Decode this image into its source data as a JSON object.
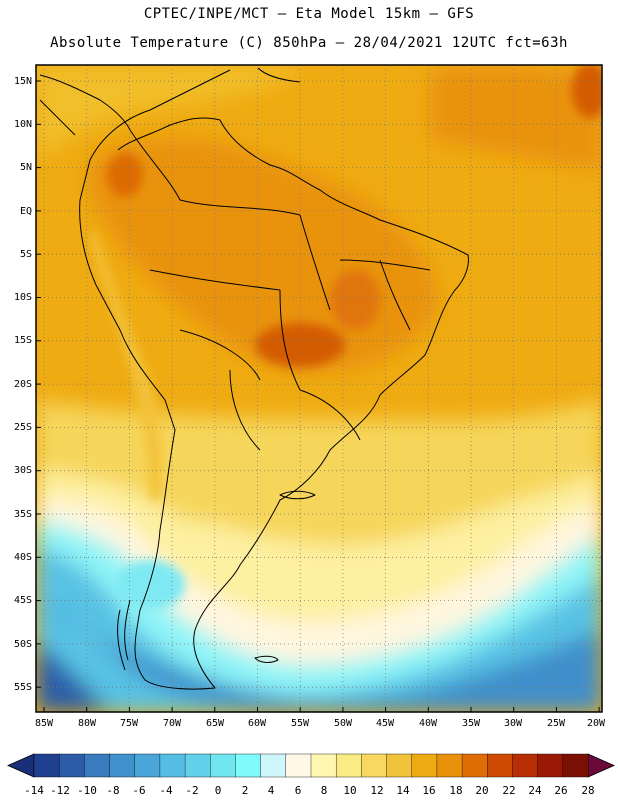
{
  "header": {
    "line1": "CPTEC/INPE/MCT –  Eta Model 15km – GFS",
    "line2": "Absolute Temperature (C) 850hPa – 28/04/2021 12UTC fct=63h"
  },
  "map": {
    "lat_labels": [
      "15N",
      "10N",
      "5N",
      "EQ",
      "5S",
      "10S",
      "15S",
      "20S",
      "25S",
      "30S",
      "35S",
      "40S",
      "45S",
      "50S",
      "55S"
    ],
    "lon_labels": [
      "85W",
      "80W",
      "75W",
      "70W",
      "65W",
      "60W",
      "55W",
      "50W",
      "45W",
      "40W",
      "35W",
      "30W",
      "25W",
      "20W"
    ]
  },
  "colorbar": {
    "labels": [
      "-14",
      "-12",
      "-10",
      "-8",
      "-6",
      "-4",
      "-2",
      "0",
      "2",
      "4",
      "6",
      "8",
      "10",
      "12",
      "14",
      "16",
      "18",
      "20",
      "22",
      "24",
      "26",
      "28"
    ],
    "colors": [
      "#1f3f8f",
      "#2c5ca8",
      "#3a7bbf",
      "#3f92cc",
      "#4aa6d8",
      "#55bde3",
      "#62d2ea",
      "#6fe6f0",
      "#80fbfb",
      "#cff7fb",
      "#fff8e6",
      "#fff7b0",
      "#fbeb84",
      "#f8d860",
      "#f1c23c",
      "#eeaa12",
      "#e9900a",
      "#e06e06",
      "#cf4a04",
      "#b72d05",
      "#9a1905",
      "#7a1004"
    ],
    "arrow_left_color": "#1a2f7a",
    "arrow_right_color": "#6a0a3a"
  }
}
